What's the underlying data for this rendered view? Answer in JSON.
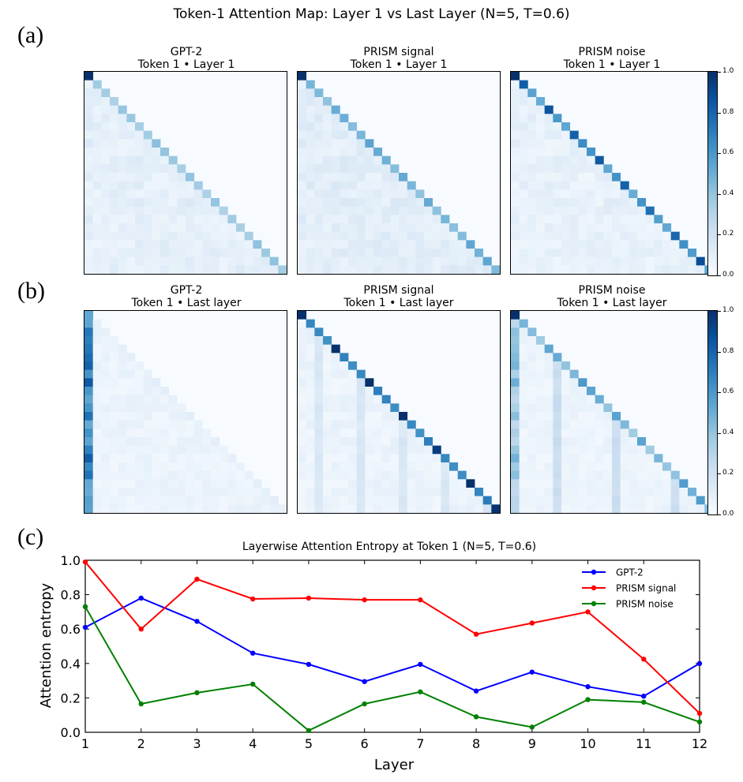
{
  "suptitle": "Token-1 Attention Map: Layer 1 vs Last Layer (N=5, T=0.6)",
  "panel_labels": [
    "(a)",
    "(b)",
    "(c)"
  ],
  "maps": {
    "row_a": [
      {
        "title": "GPT-2",
        "subtitle": "Token 1 • Layer 1"
      },
      {
        "title": "PRISM signal",
        "subtitle": "Token 1 • Layer 1"
      },
      {
        "title": "PRISM noise",
        "subtitle": "Token 1 • Layer 1"
      }
    ],
    "row_b": [
      {
        "title": "GPT-2",
        "subtitle": "Token 1 • Last layer"
      },
      {
        "title": "PRISM signal",
        "subtitle": "Token 1 • Last layer"
      },
      {
        "title": "PRISM noise",
        "subtitle": "Token 1 • Last layer"
      }
    ]
  },
  "colorbar": {
    "ticks": [
      "1.0",
      "0.8",
      "0.6",
      "0.4",
      "0.2",
      "0.0"
    ],
    "colors": [
      "#f7fbff",
      "#deebf7",
      "#c6dbef",
      "#9ecae1",
      "#6baed6",
      "#4292c6",
      "#2171b5",
      "#08519c",
      "#08306b"
    ]
  },
  "chart_data": [
    {
      "type": "heatmap",
      "description_grid": "24x24 lower-triangular attention maps (6 panels)",
      "vmin": 0.0,
      "vmax": 1.0
    },
    {
      "type": "line",
      "title": "Layerwise Attention Entropy at Token 1 (N=5, T=0.6)",
      "xlabel": "Layer",
      "ylabel": "Attention entropy",
      "x": [
        1,
        2,
        3,
        4,
        5,
        6,
        7,
        8,
        9,
        10,
        11,
        12
      ],
      "xlim": [
        1,
        12
      ],
      "ylim": [
        0.0,
        1.0
      ],
      "yticks": [
        "0.0",
        "0.2",
        "0.4",
        "0.6",
        "0.8",
        "1.0"
      ],
      "legend_position": "top-right",
      "series": [
        {
          "name": "GPT-2",
          "color": "#0000ff",
          "values": [
            0.61,
            0.78,
            0.645,
            0.46,
            0.395,
            0.295,
            0.395,
            0.24,
            0.35,
            0.265,
            0.21,
            0.4
          ]
        },
        {
          "name": "PRISM signal",
          "color": "#ff0000",
          "values": [
            0.99,
            0.6,
            0.89,
            0.775,
            0.78,
            0.77,
            0.77,
            0.57,
            0.635,
            0.7,
            0.425,
            0.11
          ]
        },
        {
          "name": "PRISM noise",
          "color": "#008000",
          "values": [
            0.73,
            0.165,
            0.23,
            0.28,
            0.01,
            0.165,
            0.235,
            0.09,
            0.03,
            0.19,
            0.175,
            0.06
          ]
        }
      ]
    }
  ]
}
